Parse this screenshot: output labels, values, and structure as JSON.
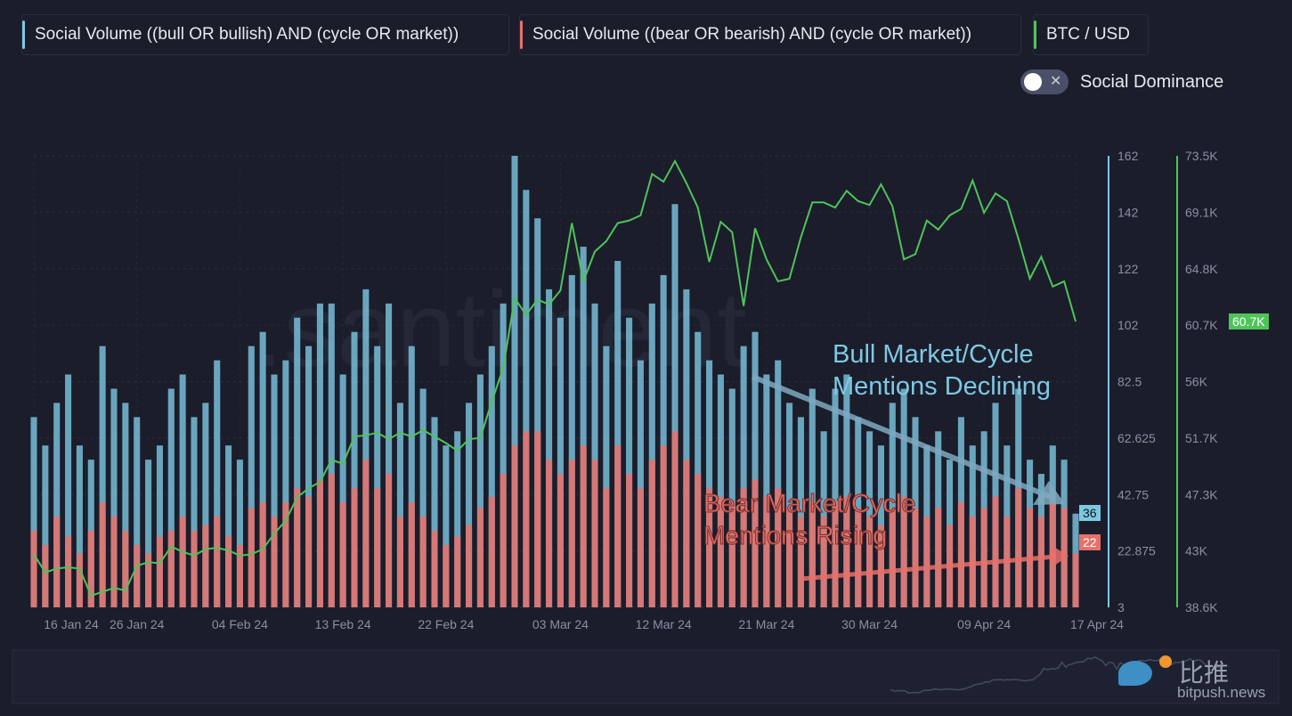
{
  "legend": [
    {
      "label": "Social Volume ((bull OR bullish) AND (cycle OR market))",
      "color": "#7ec8e3"
    },
    {
      "label": "Social Volume ((bear OR bearish) AND (cycle OR market))",
      "color": "#e8706a"
    },
    {
      "label": "BTC / USD",
      "color": "#4fc35a"
    }
  ],
  "toggle": {
    "label": "Social Dominance",
    "state": "off",
    "icon": "close-icon"
  },
  "watermark": ".santiment",
  "annotations": {
    "bull": {
      "line1": "Bull Market/Cycle",
      "line2": "Mentions Declining",
      "color": "#7ec8e3"
    },
    "bear": {
      "line1": "Bear Market/Cycle",
      "line2": "Mentions Rising",
      "color": "#e8706a"
    }
  },
  "logo": {
    "cn": "比推",
    "en": "bitpush.news"
  },
  "chart_data": {
    "type": "bar+line",
    "x_start": "2024-01-17",
    "x_end": "2024-04-17",
    "x_ticks": [
      {
        "date": "2024-01-16",
        "label": "16 Jan 24"
      },
      {
        "date": "2024-01-26",
        "label": "26 Jan 24"
      },
      {
        "date": "2024-02-04",
        "label": "04 Feb 24"
      },
      {
        "date": "2024-02-13",
        "label": "13 Feb 24"
      },
      {
        "date": "2024-02-22",
        "label": "22 Feb 24"
      },
      {
        "date": "2024-03-03",
        "label": "03 Mar 24"
      },
      {
        "date": "2024-03-12",
        "label": "12 Mar 24"
      },
      {
        "date": "2024-03-21",
        "label": "21 Mar 24"
      },
      {
        "date": "2024-03-30",
        "label": "30 Mar 24"
      },
      {
        "date": "2024-04-09",
        "label": "09 Apr 24"
      },
      {
        "date": "2024-04-17",
        "label": "17 Apr 24"
      }
    ],
    "y_left": {
      "range": [
        3,
        162
      ],
      "ticks": [
        "162",
        "142",
        "122",
        "102",
        "82.5",
        "62.625",
        "42.75",
        "22.875",
        "3"
      ],
      "color": "#7ec8e3"
    },
    "y_right": {
      "range": [
        38.6,
        73.5
      ],
      "unit": "K USD",
      "ticks": [
        "73.5K",
        "69.1K",
        "64.8K",
        "60.7K",
        "56K",
        "51.7K",
        "47.3K",
        "43K",
        "38.6K"
      ],
      "color": "#4fc35a"
    },
    "grid": true,
    "series": [
      {
        "name": "Social Volume ((bull OR bullish) AND (cycle OR market))",
        "type": "bar",
        "axis": "left",
        "color": "#7ec8e3",
        "last_value": "36",
        "values": [
          70,
          60,
          75,
          85,
          60,
          55,
          95,
          80,
          75,
          70,
          55,
          60,
          80,
          85,
          70,
          75,
          90,
          60,
          55,
          95,
          100,
          85,
          90,
          105,
          95,
          110,
          110,
          85,
          100,
          115,
          95,
          110,
          75,
          95,
          80,
          70,
          60,
          65,
          75,
          85,
          95,
          110,
          162,
          150,
          140,
          115,
          105,
          120,
          130,
          110,
          95,
          125,
          105,
          90,
          110,
          120,
          145,
          115,
          100,
          90,
          85,
          80,
          95,
          100,
          85,
          90,
          75,
          70,
          80,
          65,
          80,
          85,
          70,
          65,
          60,
          75,
          80,
          70,
          60,
          65,
          55,
          70,
          60,
          65,
          75,
          60,
          80,
          55,
          50,
          60,
          55,
          36
        ]
      },
      {
        "name": "Social Volume ((bear OR bearish) AND (cycle OR market))",
        "type": "bar",
        "axis": "left",
        "color": "#e8706a",
        "last_value": "22",
        "values": [
          30,
          25,
          35,
          28,
          22,
          30,
          40,
          35,
          30,
          25,
          22,
          28,
          30,
          35,
          30,
          32,
          35,
          28,
          25,
          38,
          40,
          35,
          40,
          45,
          42,
          48,
          50,
          40,
          45,
          55,
          45,
          50,
          35,
          40,
          35,
          30,
          25,
          28,
          32,
          38,
          42,
          50,
          60,
          65,
          65,
          55,
          50,
          55,
          60,
          55,
          45,
          60,
          50,
          45,
          55,
          60,
          65,
          55,
          50,
          45,
          42,
          40,
          45,
          48,
          42,
          45,
          38,
          35,
          40,
          35,
          40,
          42,
          38,
          35,
          32,
          38,
          42,
          38,
          35,
          38,
          32,
          40,
          35,
          38,
          42,
          35,
          45,
          38,
          35,
          40,
          38,
          22
        ]
      },
      {
        "name": "BTC / USD",
        "type": "line",
        "axis": "right",
        "color": "#4fc35a",
        "last_value": "60.7K",
        "values": [
          42.7,
          41.3,
          41.6,
          41.7,
          41.6,
          39.5,
          39.8,
          40.1,
          39.9,
          41.8,
          42.1,
          42.0,
          43.3,
          42.9,
          42.6,
          43.1,
          43.2,
          43.0,
          42.6,
          42.7,
          43.1,
          44.3,
          45.3,
          47.1,
          47.8,
          48.3,
          50.0,
          49.7,
          51.8,
          51.9,
          52.1,
          51.6,
          52.1,
          51.8,
          52.3,
          51.8,
          51.3,
          50.7,
          51.6,
          51.7,
          54.5,
          57.1,
          62.5,
          61.2,
          62.4,
          62.0,
          63.1,
          68.3,
          63.8,
          66.1,
          66.9,
          68.3,
          68.5,
          68.9,
          72.1,
          71.5,
          73.1,
          71.4,
          69.5,
          65.3,
          68.4,
          67.6,
          61.9,
          67.9,
          65.5,
          63.8,
          64.0,
          67.2,
          69.9,
          69.9,
          69.5,
          70.8,
          70.0,
          69.7,
          71.3,
          69.6,
          65.5,
          65.9,
          68.5,
          67.8,
          68.9,
          69.4,
          71.6,
          69.1,
          70.6,
          70.0,
          67.1,
          64.0,
          65.7,
          63.4,
          63.8,
          60.7
        ]
      }
    ]
  }
}
